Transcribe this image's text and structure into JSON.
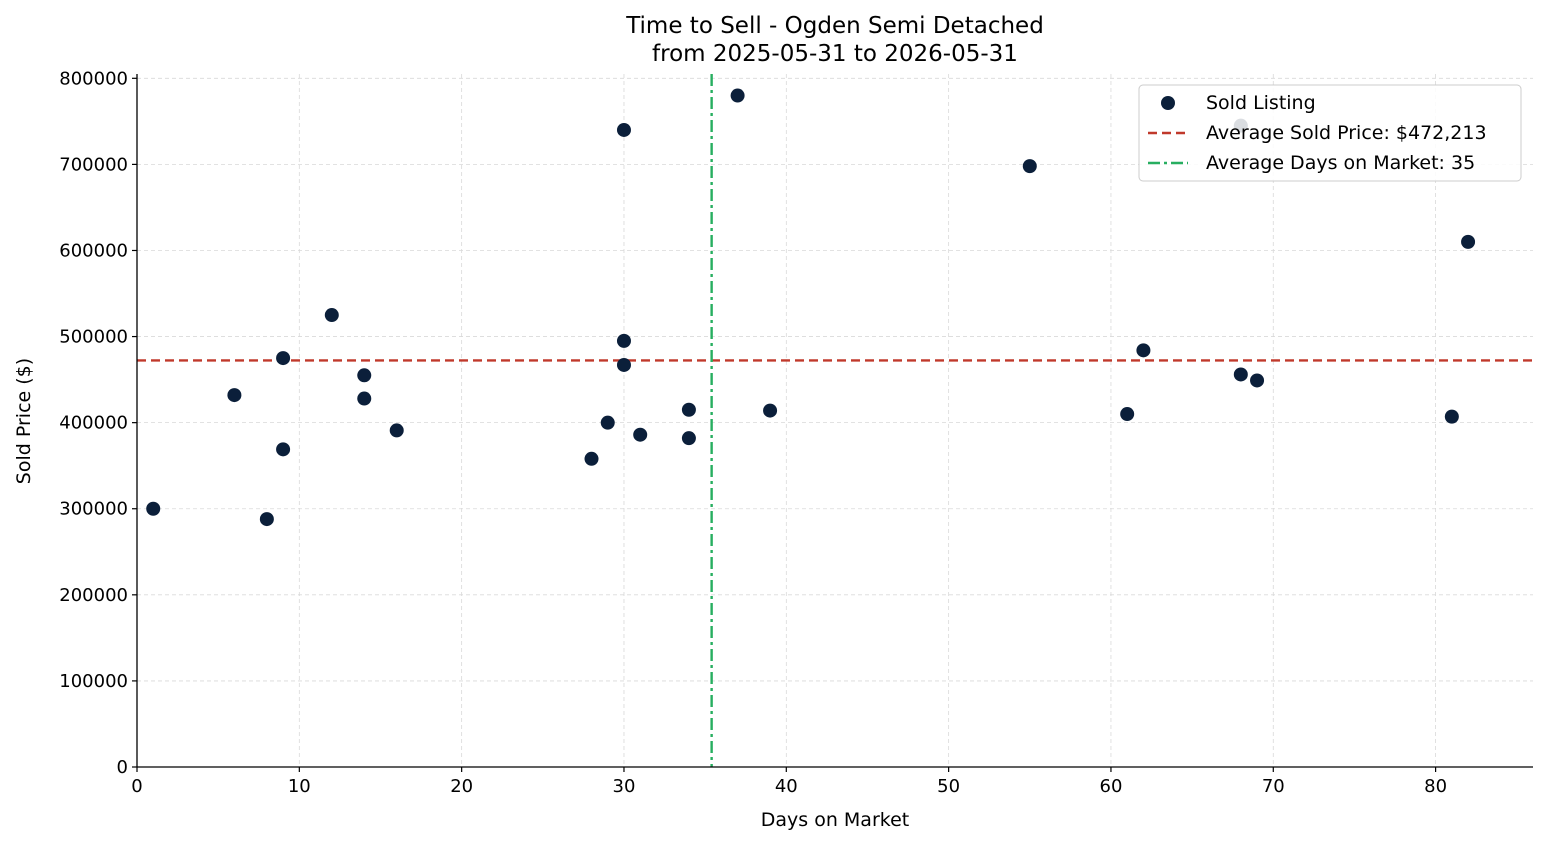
{
  "chart_data": {
    "type": "scatter",
    "title": "Time to Sell - Ogden Semi Detached",
    "subtitle": "from 2025-05-31 to 2026-05-31",
    "xlabel": "Days on Market",
    "ylabel": "Sold Price ($)",
    "xlim": [
      0,
      86
    ],
    "ylim": [
      0,
      805000
    ],
    "xticks": [
      0,
      10,
      20,
      30,
      40,
      50,
      60,
      70,
      80
    ],
    "yticks": [
      0,
      100000,
      200000,
      300000,
      400000,
      500000,
      600000,
      700000,
      800000
    ],
    "grid": true,
    "legend_position": "top-right",
    "series": [
      {
        "name": "Sold Listing",
        "color": "#0b1f3a",
        "points": [
          {
            "x": 1,
            "y": 300000
          },
          {
            "x": 6,
            "y": 432000
          },
          {
            "x": 8,
            "y": 288000
          },
          {
            "x": 9,
            "y": 475000
          },
          {
            "x": 9,
            "y": 369000
          },
          {
            "x": 12,
            "y": 525000
          },
          {
            "x": 14,
            "y": 455000
          },
          {
            "x": 14,
            "y": 428000
          },
          {
            "x": 16,
            "y": 391000
          },
          {
            "x": 28,
            "y": 358000
          },
          {
            "x": 29,
            "y": 400000
          },
          {
            "x": 30,
            "y": 740000
          },
          {
            "x": 30,
            "y": 495000
          },
          {
            "x": 30,
            "y": 467000
          },
          {
            "x": 31,
            "y": 386000
          },
          {
            "x": 34,
            "y": 415000
          },
          {
            "x": 34,
            "y": 382000
          },
          {
            "x": 37,
            "y": 780000
          },
          {
            "x": 39,
            "y": 414000
          },
          {
            "x": 55,
            "y": 698000
          },
          {
            "x": 61,
            "y": 410000
          },
          {
            "x": 62,
            "y": 484000
          },
          {
            "x": 68,
            "y": 745000
          },
          {
            "x": 68,
            "y": 456000
          },
          {
            "x": 69,
            "y": 449000
          },
          {
            "x": 81,
            "y": 407000
          },
          {
            "x": 82,
            "y": 610000
          }
        ]
      }
    ],
    "reference_lines": [
      {
        "name": "Average Sold Price: $472,213",
        "orientation": "horizontal",
        "value": 472213,
        "style": "dashed",
        "color": "#c0392b"
      },
      {
        "name": "Average Days on Market: 35",
        "orientation": "vertical",
        "value": 35.4,
        "style": "dashdot",
        "color": "#27ae60"
      }
    ]
  }
}
